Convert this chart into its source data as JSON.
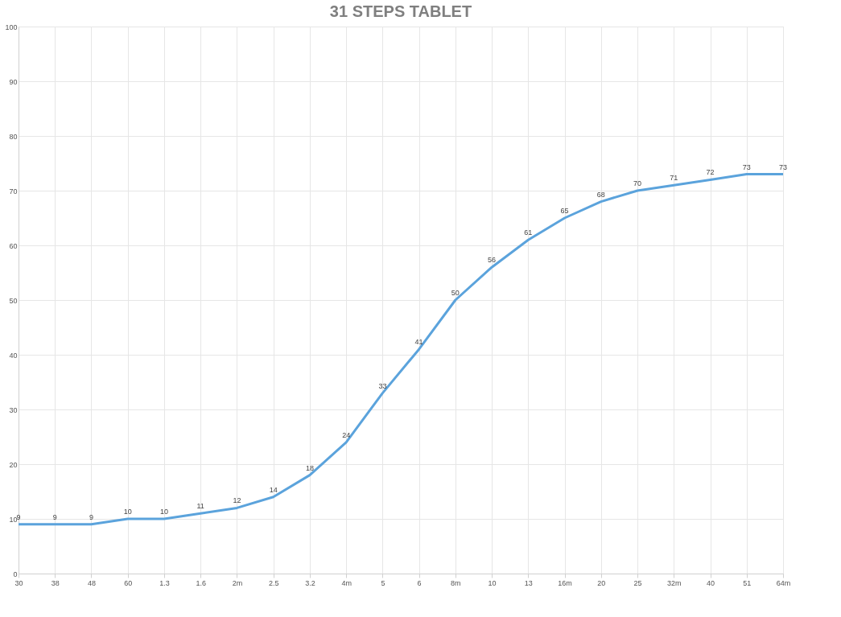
{
  "chart_data": {
    "type": "line",
    "title": "31 STEPS TABLET",
    "categories": [
      "30",
      "38",
      "48",
      "60",
      "1.3",
      "1.6",
      "2m",
      "2.5",
      "3.2",
      "4m",
      "5",
      "6",
      "8m",
      "10",
      "13",
      "16m",
      "20",
      "25",
      "32m",
      "40",
      "51",
      "64m"
    ],
    "series": [
      {
        "color": "#5ba3dc",
        "values": [
          9,
          9,
          9,
          10,
          10,
          11,
          12,
          14,
          18,
          24,
          33,
          41,
          50,
          56,
          61,
          65,
          68,
          70,
          71,
          72,
          73,
          73
        ]
      }
    ],
    "ylim": [
      0,
      100
    ],
    "yticks": [
      0,
      10,
      20,
      30,
      40,
      50,
      60,
      70,
      80,
      90,
      100
    ],
    "grid": true,
    "data_labels": true,
    "legend": false,
    "marker": "none",
    "line_style": "solid"
  }
}
